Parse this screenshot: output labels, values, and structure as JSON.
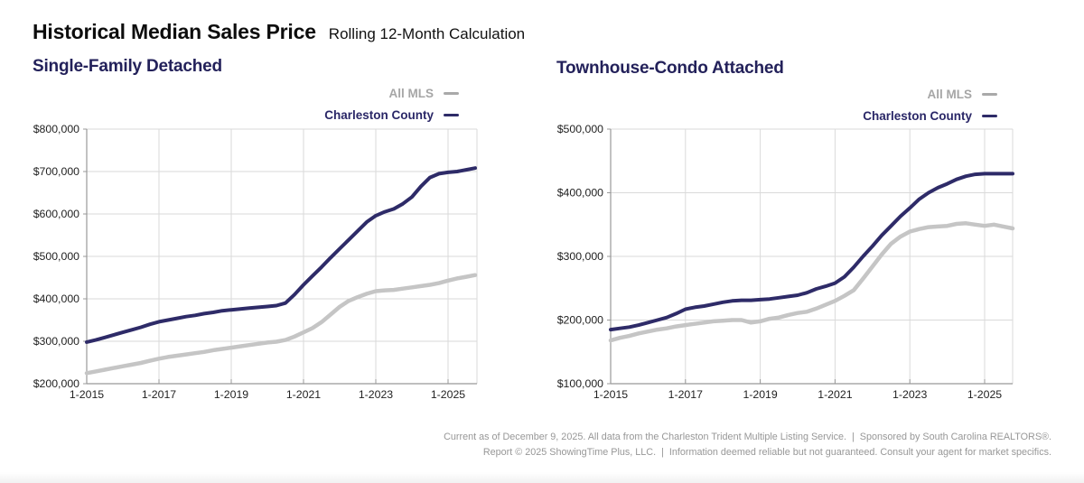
{
  "page": {
    "title": "Historical Median Sales Price",
    "subtitle": "Rolling 12-Month Calculation",
    "footer_line1": "Current as of December 9, 2025. All data from the Charleston Trident Multiple Listing Service.  |  Sponsored by South Carolina REALTORS®.",
    "footer_line2": "Report © 2025 ShowingTime Plus, LLC.  |  Information deemed reliable but not guaranteed. Consult your agent for market specifics."
  },
  "legend": {
    "all_mls": "All MLS",
    "charleston": "Charleston County"
  },
  "colors": {
    "navy": "#2e2b68",
    "gray_line": "#c5c5c5",
    "grid": "#dadada",
    "axis": "#999999",
    "tick_label": "#1f1f1f"
  },
  "chart_data": [
    {
      "type": "line",
      "title": "Single-Family Detached",
      "x_start": 2015.0,
      "x_step": 0.25,
      "xlim": [
        2015,
        2025.85
      ],
      "ylim": [
        200000,
        800000
      ],
      "y_tick_step": 100000,
      "y_tick_labels": [
        "$200,000",
        "$300,000",
        "$400,000",
        "$500,000",
        "$600,000",
        "$700,000",
        "$800,000"
      ],
      "x_tick_years": [
        2015,
        2017,
        2019,
        2021,
        2023,
        2025
      ],
      "x_tick_labels": [
        "1-2015",
        "1-2017",
        "1-2019",
        "1-2021",
        "1-2023",
        "1-2025"
      ],
      "grid": true,
      "legend_position": "top-right",
      "series": [
        {
          "name": "All MLS",
          "color_key": "gray_line",
          "width": 4.5,
          "values": [
            225000,
            229000,
            233000,
            237000,
            241000,
            245000,
            249000,
            254000,
            259000,
            263000,
            266000,
            269000,
            272000,
            275000,
            279000,
            282000,
            285000,
            288000,
            291000,
            294000,
            297000,
            299000,
            303000,
            311000,
            321000,
            331000,
            345000,
            363000,
            381000,
            395000,
            404000,
            412000,
            418000,
            420000,
            421000,
            424000,
            427000,
            430000,
            433000,
            437000,
            443000,
            448000,
            452000,
            456000
          ]
        },
        {
          "name": "Charleston County",
          "color_key": "navy",
          "width": 4,
          "values": [
            298000,
            303000,
            309000,
            315000,
            321000,
            327000,
            333000,
            340000,
            346000,
            350000,
            354000,
            358000,
            361000,
            365000,
            368000,
            372000,
            374000,
            376000,
            378000,
            380000,
            382000,
            384000,
            390000,
            410000,
            433000,
            454000,
            475000,
            497000,
            518000,
            539000,
            560000,
            581000,
            596000,
            605000,
            612000,
            624000,
            640000,
            665000,
            686000,
            695000,
            698000,
            700000,
            704000,
            708000
          ]
        }
      ]
    },
    {
      "type": "line",
      "title": "Townhouse-Condo Attached",
      "x_start": 2015.0,
      "x_step": 0.25,
      "xlim": [
        2015,
        2025.78
      ],
      "ylim": [
        100000,
        500000
      ],
      "y_tick_step": 100000,
      "y_tick_labels": [
        "$100,000",
        "$200,000",
        "$300,000",
        "$400,000",
        "$500,000"
      ],
      "x_tick_years": [
        2015,
        2017,
        2019,
        2021,
        2023,
        2025
      ],
      "x_tick_labels": [
        "1-2015",
        "1-2017",
        "1-2019",
        "1-2021",
        "1-2023",
        "1-2025"
      ],
      "grid": true,
      "legend_position": "top-right",
      "series": [
        {
          "name": "All MLS",
          "color_key": "gray_line",
          "width": 4.5,
          "values": [
            168000,
            172000,
            175000,
            179000,
            182000,
            185000,
            187000,
            190000,
            192000,
            194000,
            196000,
            198000,
            199000,
            200000,
            200000,
            196000,
            198000,
            202000,
            204000,
            208000,
            211000,
            213000,
            218000,
            224000,
            230000,
            238000,
            247000,
            265000,
            284000,
            303000,
            320000,
            331000,
            339000,
            343000,
            346000,
            347000,
            348000,
            351000,
            352000,
            350000,
            348000,
            350000,
            347000,
            344000
          ]
        },
        {
          "name": "Charleston County",
          "color_key": "navy",
          "width": 4,
          "values": [
            185000,
            187000,
            189000,
            192000,
            196000,
            200000,
            204000,
            210000,
            217000,
            220000,
            222000,
            225000,
            228000,
            230000,
            231000,
            231000,
            232000,
            233000,
            235000,
            237000,
            239000,
            243000,
            249000,
            253000,
            258000,
            268000,
            283000,
            300000,
            316000,
            333000,
            348000,
            363000,
            376000,
            390000,
            400000,
            408000,
            414000,
            421000,
            426000,
            429000,
            430000,
            430000,
            430000,
            430000
          ]
        }
      ]
    }
  ]
}
